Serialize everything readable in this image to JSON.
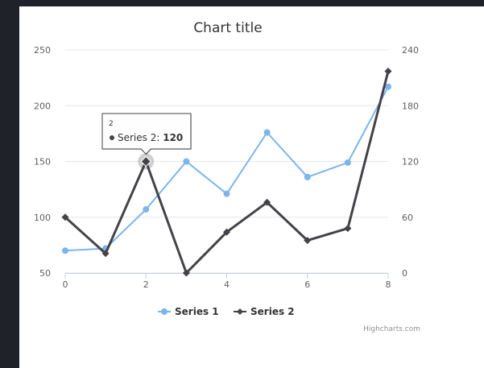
{
  "chart_data": {
    "type": "line",
    "title": "Chart title",
    "x": [
      0,
      1,
      2,
      3,
      4,
      5,
      6,
      7,
      8
    ],
    "x_ticks": [
      "0",
      "2",
      "4",
      "6",
      "8"
    ],
    "xlim": [
      0,
      8
    ],
    "y_left": {
      "min": 50,
      "max": 250,
      "ticks": [
        "50",
        "100",
        "150",
        "200",
        "250"
      ]
    },
    "y_right": {
      "min": 0,
      "max": 240,
      "ticks": [
        "0",
        "60",
        "120",
        "180",
        "240"
      ]
    },
    "grid": true,
    "legend": "bottom-center",
    "series": [
      {
        "name": "Series 1",
        "axis": "left",
        "color": "#7cb5ec",
        "marker": "circle",
        "values": [
          70,
          72,
          107,
          150,
          121,
          176,
          136,
          149,
          217
        ]
      },
      {
        "name": "Series 2",
        "axis": "right",
        "color": "#434348",
        "marker": "diamond",
        "values": [
          60,
          21,
          120,
          0,
          44,
          76,
          35,
          48,
          217
        ]
      }
    ],
    "tooltip": {
      "header": "2",
      "series": "Series 2",
      "label": "Series 2: ",
      "value": "120",
      "point_index": 2
    },
    "credits": "Highcharts.com"
  }
}
